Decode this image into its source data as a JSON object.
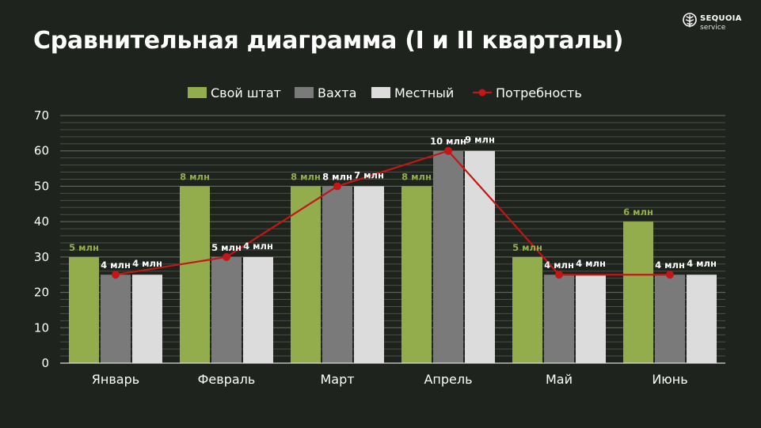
{
  "title": "Сравнительная диаграмма (I и II кварталы)",
  "brand": {
    "name": "SEQUOIA",
    "subtitle": "service",
    "icon": "tree-logo-icon"
  },
  "colors": {
    "background": "#1f231d",
    "own_staff": "#94ad4c",
    "shift": "#7a7a7a",
    "local": "#dcdcdc",
    "demand": "#c41616",
    "own_label": "#94ad4c",
    "label": "#ffffff"
  },
  "chart_data": {
    "type": "bar",
    "categories": [
      "Январь",
      "Февраль",
      "Март",
      "Апрель",
      "Май",
      "Июнь"
    ],
    "ylim": [
      0,
      70
    ],
    "yticks": [
      0,
      10,
      20,
      30,
      40,
      50,
      60,
      70
    ],
    "grid": true,
    "legend_position": "top",
    "series": [
      {
        "name": "Свой штат",
        "type": "bar",
        "values": [
          30,
          50,
          50,
          50,
          30,
          40
        ],
        "labels": [
          "5 млн",
          "8 млн",
          "8 млн",
          "8 млн",
          "5 млн",
          "6 млн"
        ]
      },
      {
        "name": "Вахта",
        "type": "bar",
        "values": [
          25,
          30,
          50,
          60,
          25,
          25
        ],
        "labels": [
          "4 млн",
          "5 млн",
          "8 млн",
          "10 млн",
          "4 млн",
          "4 млн"
        ]
      },
      {
        "name": "Местный",
        "type": "bar",
        "values": [
          25,
          30,
          50,
          60,
          25,
          25
        ],
        "labels": [
          "4 млн",
          "4 млн",
          "7 млн",
          "9 млн",
          "4 млн",
          "4 млн"
        ]
      },
      {
        "name": "Потребность",
        "type": "line",
        "values": [
          25,
          30,
          50,
          60,
          25,
          25
        ]
      }
    ]
  }
}
